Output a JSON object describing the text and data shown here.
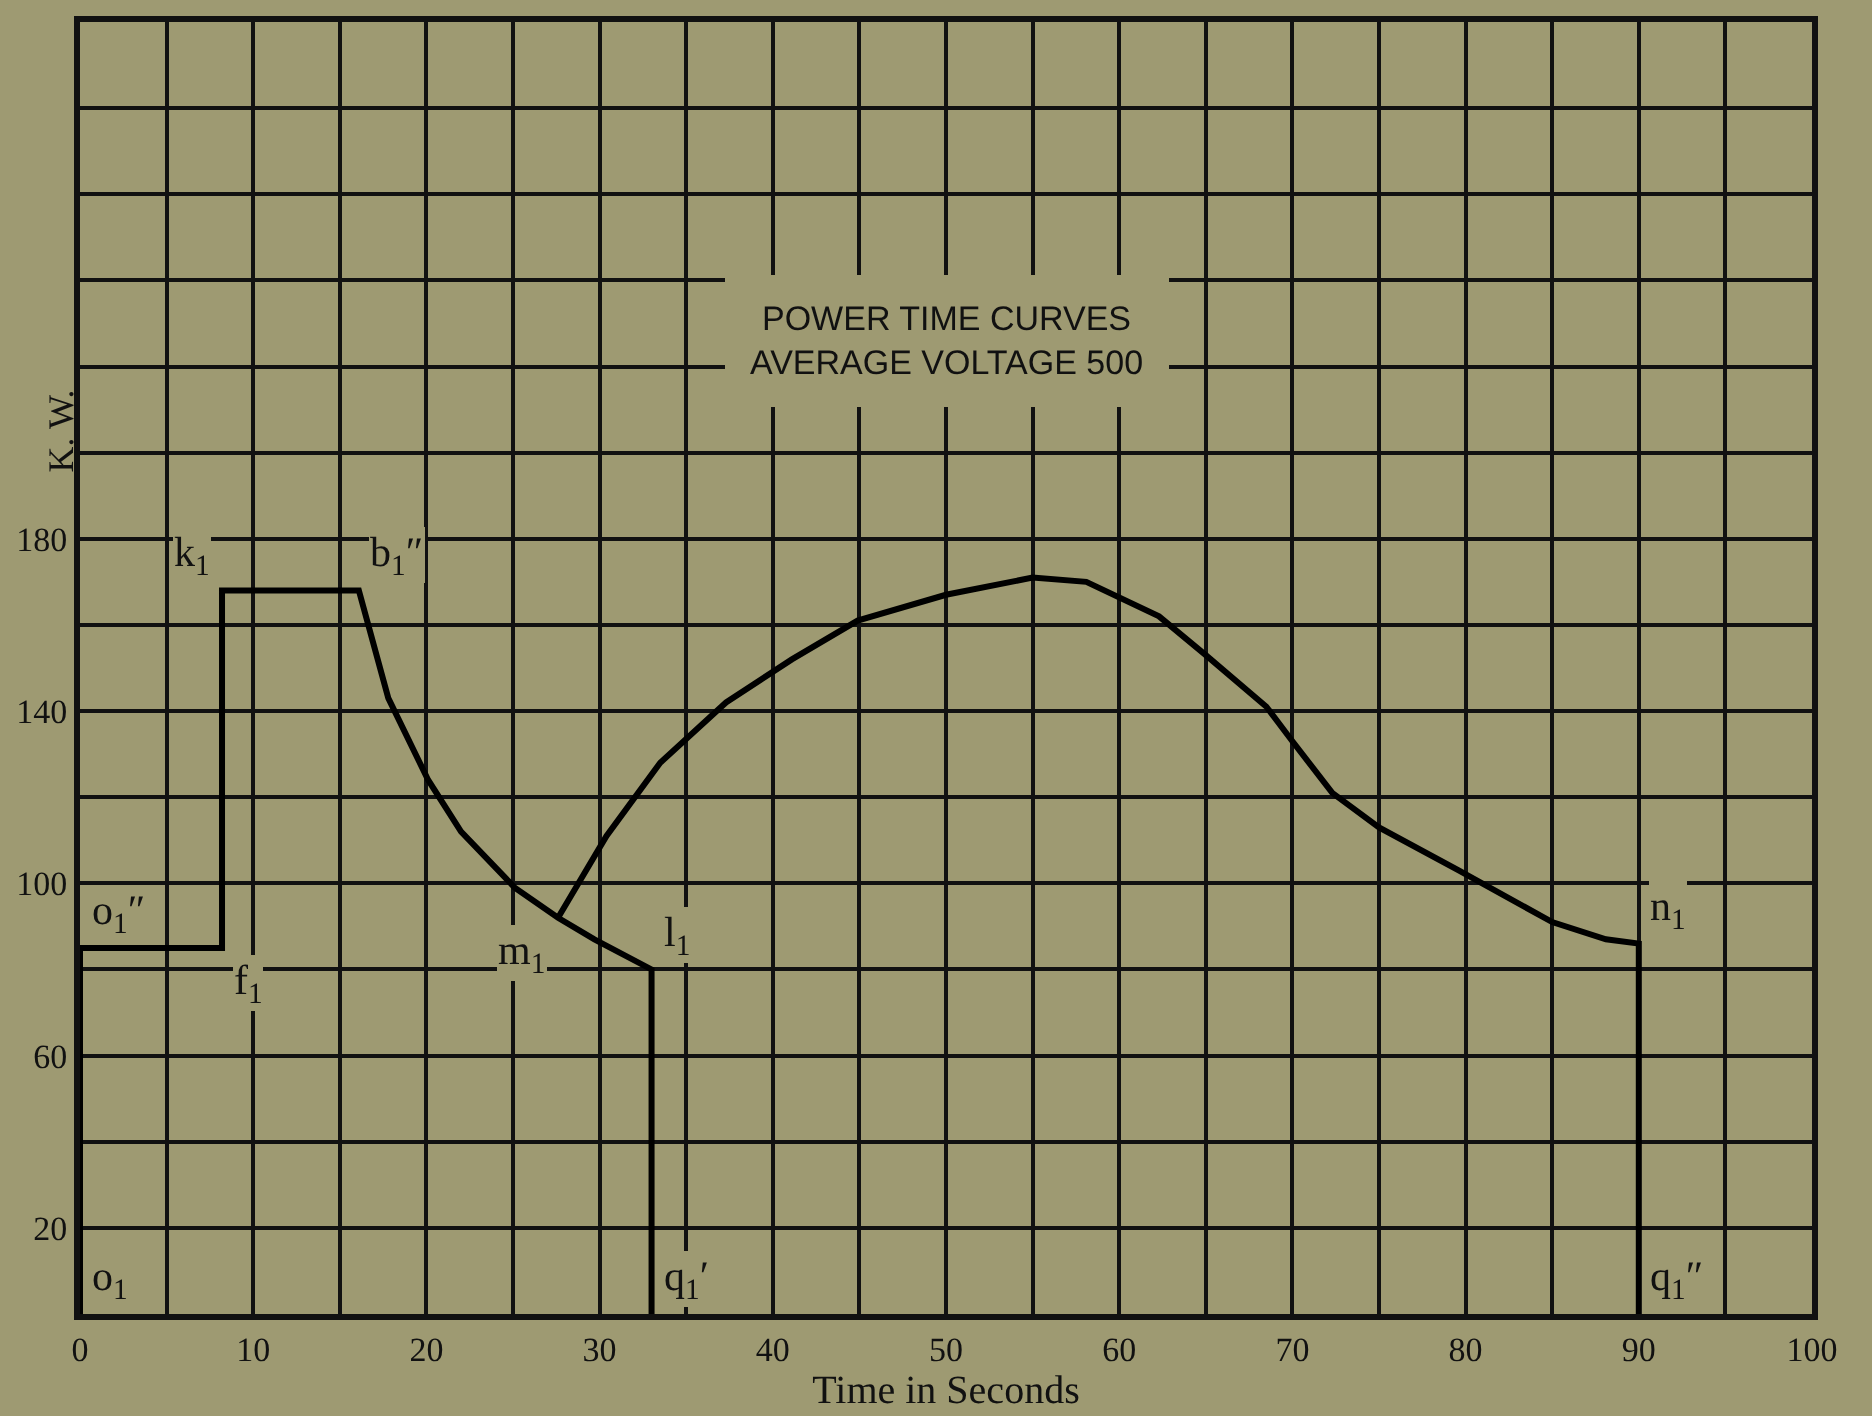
{
  "chart_data": {
    "type": "line",
    "title": "POWER TIME CURVES\nAVERAGE VOLTAGE 500",
    "xlabel": "Time in Seconds",
    "ylabel": "K. W.",
    "series": [
      {
        "color": "#000000",
        "x": [
          0,
          0,
          8.2,
          8.2,
          16.1,
          17.8,
          20.1,
          22.0,
          25.1,
          27.6,
          29.7,
          33,
          33
        ],
        "values": [
          0,
          85,
          85,
          168,
          168,
          143,
          124,
          112,
          99,
          92,
          87,
          80,
          0
        ]
      },
      {
        "color": "#000000",
        "x": [
          27.6,
          30.4,
          33.5,
          37.3,
          41.1,
          44.9,
          50,
          55,
          58.1,
          62.3,
          65,
          68.5,
          70,
          72.3,
          75,
          79.6,
          85,
          88.1,
          90,
          90
        ],
        "values": [
          92,
          111,
          128,
          142,
          152,
          161,
          167,
          171,
          170,
          162,
          153,
          141,
          133,
          121,
          113,
          103,
          91,
          87,
          86,
          0
        ]
      }
    ],
    "xlim": [
      0,
      100
    ],
    "xticks": [
      0,
      {
        "value": 5,
        "label": null
      },
      10,
      {
        "value": 15,
        "label": null
      },
      20,
      {
        "value": 25,
        "label": null
      },
      30,
      {
        "value": 35,
        "label": null
      },
      40,
      {
        "value": 45,
        "label": null
      },
      50,
      {
        "value": 55,
        "label": null
      },
      60,
      {
        "value": 65,
        "label": null
      },
      70,
      {
        "value": 75,
        "label": null
      },
      80,
      {
        "value": 85,
        "label": null
      },
      90,
      {
        "value": 95,
        "label": null
      },
      100
    ],
    "ylim": [
      0,
      300
    ],
    "yticks": [
      {
        "value": 0,
        "label": null
      },
      20,
      {
        "value": 40,
        "label": null
      },
      60,
      {
        "value": 80,
        "label": null
      },
      100,
      {
        "value": 120,
        "label": null
      },
      140,
      {
        "value": 160,
        "label": null
      },
      180,
      {
        "value": 200,
        "label": null
      },
      {
        "value": 220,
        "label": null
      },
      {
        "value": 240,
        "label": null
      },
      {
        "value": 260,
        "label": null
      },
      {
        "value": 280,
        "label": null
      },
      {
        "value": 300,
        "label": null
      }
    ],
    "grid": true,
    "marker": "none",
    "line_style": "solid",
    "annotations": [
      {
        "text": "o$_{1}$″",
        "x": 0,
        "y": 85
      },
      {
        "text": "k$_{1}$",
        "x": 8.2,
        "y": 168
      },
      {
        "text": "b$_{1}$″",
        "x": 16.1,
        "y": 168
      },
      {
        "text": "f$_{1}$",
        "x": 8.2,
        "y": 85
      },
      {
        "text": "m$_{1}$",
        "x": 27.6,
        "y": 92
      },
      {
        "text": "l$_{1}$",
        "x": 33,
        "y": 80
      },
      {
        "text": "o$_{1}$",
        "x": 0,
        "y": 0
      },
      {
        "text": "q$_{1}$′",
        "x": 33,
        "y": 0
      },
      {
        "text": "q$_{1}$″",
        "x": 90,
        "y": 0
      },
      {
        "text": "n$_{1}$",
        "x": 90,
        "y": 86
      }
    ]
  }
}
